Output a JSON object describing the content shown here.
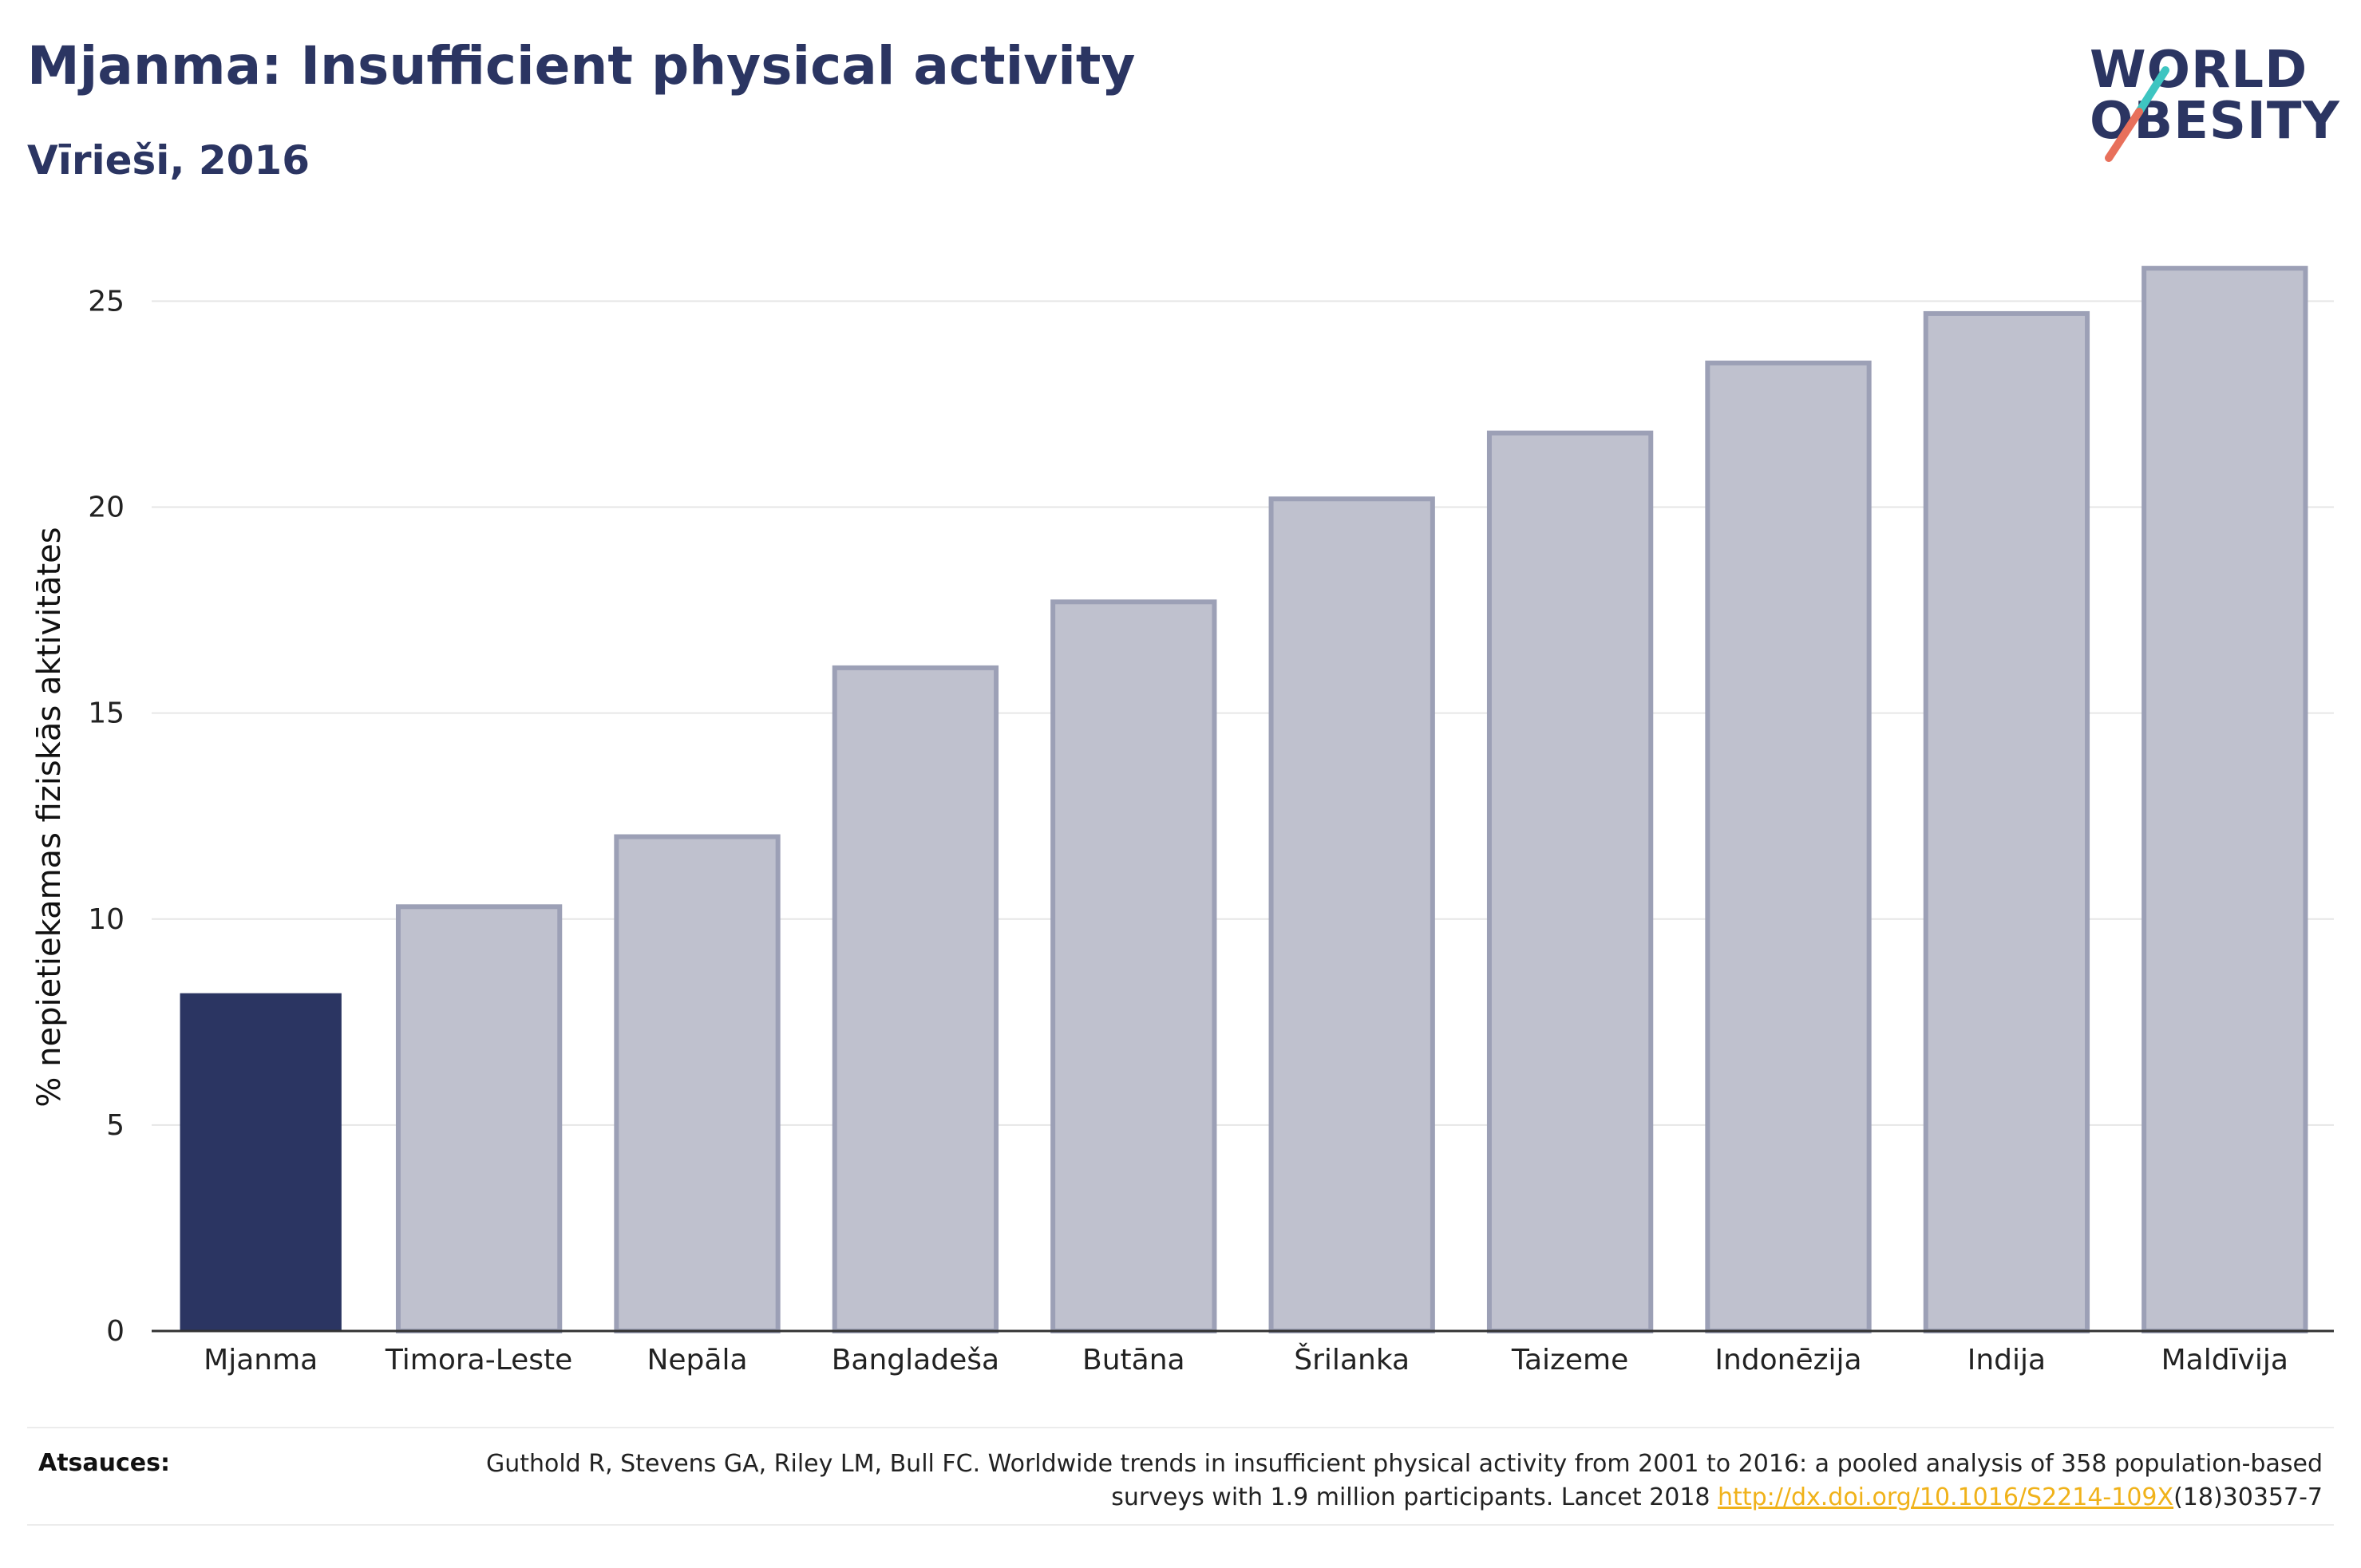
{
  "header": {
    "title": "Mjanma: Insufficient physical activity",
    "subtitle": "Vīrieši, 2016"
  },
  "logo": {
    "line1": "WORLD",
    "line2": "OBESITY",
    "text_color": "#2b3562",
    "slash_colors": [
      "#3ec5c1",
      "#e8705b"
    ]
  },
  "chart_data": {
    "type": "bar",
    "categories": [
      "Mjanma",
      "Timora-Leste",
      "Nepāla",
      "Bangladeša",
      "Butāna",
      "Šrilanka",
      "Taizeme",
      "Indonēzija",
      "Indija",
      "Maldīvija"
    ],
    "values": [
      8.2,
      10.3,
      12.0,
      16.1,
      17.7,
      20.2,
      21.8,
      23.5,
      24.7,
      25.8
    ],
    "highlight_category": "Mjanma",
    "ylabel": "% nepietiekamas fiziskās aktivitātes",
    "xlabel": "",
    "ylim": [
      0,
      26.5
    ],
    "yticks": [
      0,
      5,
      10,
      15,
      20,
      25
    ],
    "grid": true,
    "colors": {
      "highlight": "#2b3562",
      "other_fill": "#bfc1ce",
      "other_stroke": "#9ca0b6"
    }
  },
  "source": {
    "label": "Atsauces:",
    "text_part1": "Guthold R, Stevens GA, Riley LM, Bull FC. Worldwide trends in insufficient physical activity from 2001 to 2016: a pooled analysis of 358 population-based surveys with 1.9 million participants. Lancet 2018 ",
    "link": "http://dx.doi.org/10.1016/S2214-109X",
    "text_part2": "(18)30357-7"
  }
}
